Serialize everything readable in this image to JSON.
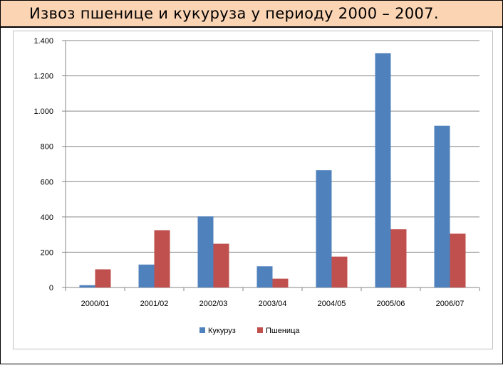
{
  "slide": {
    "title": "Извоз пшенице и кукуруза у периоду 2000 – 2007."
  },
  "chart_data": {
    "type": "bar",
    "title": "",
    "xlabel": "",
    "ylabel": "",
    "categories": [
      "2000/01",
      "2001/02",
      "2002/03",
      "2003/04",
      "2004/05",
      "2005/06",
      "2006/07"
    ],
    "series": [
      {
        "name": "Кукуруз",
        "color": "#4f81bd",
        "values": [
          13,
          130,
          403,
          120,
          665,
          1328,
          917
        ]
      },
      {
        "name": "Пшеница",
        "color": "#c0504d",
        "values": [
          103,
          325,
          248,
          50,
          175,
          330,
          305
        ]
      }
    ],
    "ylim": [
      0,
      1400
    ],
    "yticks": [
      0,
      200,
      400,
      600,
      800,
      1000,
      1200,
      1400
    ],
    "ytick_labels": [
      "0",
      "200",
      "400",
      "600",
      "800",
      "1.000",
      "1.200",
      "1.400"
    ],
    "grid": true,
    "legend_position": "bottom"
  }
}
